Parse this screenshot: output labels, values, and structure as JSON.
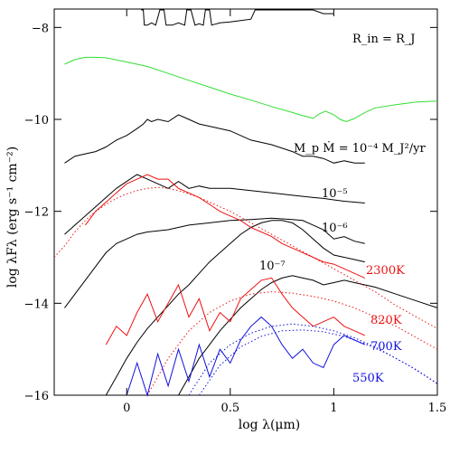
{
  "chart_data": {
    "type": "line",
    "xlabel": "log λ(μm)",
    "ylabel": "log λFλ  (erg s⁻¹ cm⁻²)",
    "xlim": [
      -0.35,
      1.5
    ],
    "ylim": [
      -16,
      -7.6
    ],
    "x_ticks": [
      0,
      0.5,
      1,
      1.5
    ],
    "x_tick_labels": [
      "0",
      "0.5",
      "1",
      "1.5"
    ],
    "y_ticks": [
      -8,
      -10,
      -12,
      -14,
      -16
    ],
    "y_tick_labels": [
      "−8",
      "−10",
      "−12",
      "−14",
      "−16"
    ],
    "grid": false,
    "colors": {
      "axes": "#000000",
      "disk_top": "#000000",
      "green": "#33dd33",
      "red": "#ee1111",
      "blue": "#1111dd",
      "black_model": "#000000"
    },
    "annotations": {
      "rin": "R_in = R_J",
      "accretion": "M_p Ṁ = 10⁻⁴ M_J²/yr",
      "acc5": "10⁻⁵",
      "acc6": "10⁻⁶",
      "acc7": "10⁻⁷",
      "t2300": "2300K",
      "t820": "820K",
      "t700": "700K",
      "t550": "550K"
    },
    "series": [
      {
        "color": "#000000",
        "style": "solid",
        "x": [
          0.07,
          0.08,
          0.085,
          0.09,
          0.1,
          0.12,
          0.14,
          0.16,
          0.17,
          0.18,
          0.19,
          0.2,
          0.22,
          0.25,
          0.28,
          0.29,
          0.3,
          0.31,
          0.33,
          0.35,
          0.37,
          0.38,
          0.39,
          0.4,
          0.41,
          0.45,
          0.5,
          0.55,
          0.6,
          0.62,
          0.63,
          0.64,
          0.65,
          0.66,
          0.68,
          0.7,
          0.75,
          0.8,
          0.85,
          0.9,
          0.95,
          1.0
        ],
        "y": [
          -7.62,
          -7.62,
          -7.95,
          -7.95,
          -7.95,
          -7.9,
          -7.95,
          -7.62,
          -7.62,
          -7.62,
          -7.95,
          -7.95,
          -7.95,
          -7.9,
          -7.95,
          -7.62,
          -7.62,
          -7.62,
          -7.95,
          -7.92,
          -7.95,
          -7.62,
          -7.62,
          -7.62,
          -7.95,
          -7.9,
          -7.88,
          -7.85,
          -7.82,
          -7.62,
          -7.62,
          -7.62,
          -7.62,
          -7.62,
          -7.62,
          -7.62,
          -7.62,
          -7.62,
          -7.62,
          -7.62,
          -7.7,
          -7.7
        ]
      },
      {
        "color": "#33dd33",
        "style": "solid",
        "x": [
          -0.3,
          -0.25,
          -0.2,
          -0.15,
          -0.1,
          0.0,
          0.1,
          0.2,
          0.3,
          0.4,
          0.5,
          0.6,
          0.7,
          0.8,
          0.85,
          0.88,
          0.9,
          0.93,
          0.96,
          1.0,
          1.03,
          1.06,
          1.1,
          1.15,
          1.2,
          1.3,
          1.4,
          1.5
        ],
        "y": [
          -8.8,
          -8.7,
          -8.65,
          -8.65,
          -8.66,
          -8.75,
          -8.85,
          -9.0,
          -9.15,
          -9.3,
          -9.45,
          -9.58,
          -9.72,
          -9.85,
          -9.92,
          -9.95,
          -9.98,
          -9.88,
          -9.82,
          -9.9,
          -10.0,
          -10.05,
          -9.98,
          -9.85,
          -9.75,
          -9.68,
          -9.62,
          -9.6
        ]
      },
      {
        "color": "#000000",
        "style": "solid",
        "x": [
          -0.3,
          -0.25,
          -0.2,
          -0.15,
          -0.1,
          -0.05,
          0.0,
          0.05,
          0.08,
          0.1,
          0.12,
          0.15,
          0.2,
          0.25,
          0.3,
          0.35,
          0.4,
          0.5,
          0.6,
          0.7,
          0.8,
          0.85,
          0.9,
          0.95,
          1.0,
          1.05,
          1.1,
          1.15
        ],
        "y": [
          -10.95,
          -10.8,
          -10.75,
          -10.7,
          -10.6,
          -10.45,
          -10.35,
          -10.2,
          -10.1,
          -10.0,
          -10.05,
          -10.0,
          -10.05,
          -9.9,
          -10.0,
          -10.1,
          -10.15,
          -10.25,
          -10.45,
          -10.55,
          -10.7,
          -10.8,
          -10.8,
          -10.85,
          -10.95,
          -10.9,
          -10.95,
          -10.95
        ]
      },
      {
        "color": "#000000",
        "style": "solid",
        "x": [
          -0.3,
          -0.25,
          -0.2,
          -0.15,
          -0.1,
          -0.05,
          0.0,
          0.05,
          0.1,
          0.15,
          0.2,
          0.25,
          0.3,
          0.35,
          0.4,
          0.5,
          0.6,
          0.7,
          0.8,
          0.9,
          0.95,
          1.0,
          1.05,
          1.1,
          1.15
        ],
        "y": [
          -12.5,
          -12.3,
          -12.1,
          -11.9,
          -11.7,
          -11.5,
          -11.35,
          -11.2,
          -11.3,
          -11.4,
          -11.5,
          -11.35,
          -11.5,
          -11.45,
          -11.5,
          -11.5,
          -11.55,
          -11.6,
          -11.65,
          -11.7,
          -11.72,
          -11.75,
          -11.78,
          -11.8,
          -11.82
        ]
      },
      {
        "color": "#000000",
        "style": "solid",
        "x": [
          -0.3,
          -0.25,
          -0.2,
          -0.15,
          -0.1,
          -0.05,
          0.0,
          0.05,
          0.1,
          0.2,
          0.3,
          0.4,
          0.5,
          0.6,
          0.7,
          0.8,
          0.85,
          0.9,
          0.95,
          1.0,
          1.05,
          1.1,
          1.15
        ],
        "y": [
          -14.1,
          -13.8,
          -13.5,
          -13.2,
          -12.9,
          -12.7,
          -12.6,
          -12.5,
          -12.45,
          -12.4,
          -12.3,
          -12.25,
          -12.2,
          -12.18,
          -12.15,
          -12.18,
          -12.2,
          -12.3,
          -12.4,
          -12.6,
          -12.55,
          -12.65,
          -12.7
        ]
      },
      {
        "color": "#000000",
        "style": "solid",
        "x": [
          -0.1,
          -0.05,
          0.0,
          0.05,
          0.1,
          0.15,
          0.2,
          0.25,
          0.3,
          0.35,
          0.4,
          0.45,
          0.5,
          0.55,
          0.6,
          0.65,
          0.7,
          0.75,
          0.8,
          0.85,
          0.9,
          0.95,
          1.0,
          1.05,
          1.1,
          1.15
        ],
        "y": [
          -16.0,
          -15.6,
          -15.2,
          -14.85,
          -14.55,
          -14.3,
          -14.05,
          -13.8,
          -13.6,
          -13.35,
          -13.1,
          -12.9,
          -12.7,
          -12.5,
          -12.35,
          -12.25,
          -12.2,
          -12.2,
          -12.25,
          -12.4,
          -12.6,
          -12.8,
          -12.95,
          -13.0,
          -13.05,
          -13.1
        ]
      },
      {
        "color": "#000000",
        "style": "solid",
        "x": [
          0.25,
          0.3,
          0.35,
          0.4,
          0.45,
          0.5,
          0.55,
          0.6,
          0.65,
          0.7,
          0.75,
          0.8,
          0.85,
          0.9,
          0.95,
          1.0,
          1.05,
          1.1,
          1.2,
          1.3,
          1.4,
          1.5
        ],
        "y": [
          -16.0,
          -15.6,
          -15.2,
          -14.9,
          -14.6,
          -14.35,
          -14.1,
          -13.9,
          -13.7,
          -13.55,
          -13.45,
          -13.4,
          -13.45,
          -13.5,
          -13.6,
          -13.55,
          -13.5,
          -13.55,
          -13.65,
          -13.8,
          -13.95,
          -14.1
        ]
      },
      {
        "color": "#ee1111",
        "style": "solid",
        "x": [
          -0.2,
          -0.15,
          -0.1,
          -0.05,
          0.0,
          0.05,
          0.1,
          0.15,
          0.2,
          0.25,
          0.3,
          0.35,
          0.4,
          0.45,
          0.5,
          0.55,
          0.6,
          0.65,
          0.7,
          0.75,
          0.8,
          0.85,
          0.9,
          0.95,
          1.0,
          1.05,
          1.1,
          1.15
        ],
        "y": [
          -12.3,
          -12.0,
          -11.8,
          -11.6,
          -11.4,
          -11.3,
          -11.2,
          -11.3,
          -11.3,
          -11.5,
          -11.6,
          -11.7,
          -11.85,
          -12.0,
          -12.1,
          -12.2,
          -12.35,
          -12.45,
          -12.55,
          -12.7,
          -12.8,
          -12.9,
          -13.0,
          -13.1,
          -13.15,
          -13.25,
          -13.35,
          -13.45
        ]
      },
      {
        "color": "#ee1111",
        "style": "dotted",
        "x": [
          -0.35,
          -0.3,
          -0.25,
          -0.2,
          -0.15,
          -0.1,
          -0.05,
          0.0,
          0.05,
          0.1,
          0.15,
          0.2,
          0.25,
          0.3,
          0.35,
          0.4,
          0.5,
          0.6,
          0.7,
          0.8,
          0.9,
          1.0,
          1.1,
          1.2,
          1.3,
          1.4,
          1.5
        ],
        "y": [
          -13.0,
          -12.75,
          -12.45,
          -12.2,
          -12.0,
          -11.85,
          -11.72,
          -11.62,
          -11.55,
          -11.5,
          -11.48,
          -11.5,
          -11.55,
          -11.62,
          -11.7,
          -11.8,
          -12.0,
          -12.25,
          -12.5,
          -12.75,
          -13.0,
          -13.25,
          -13.5,
          -13.75,
          -14.05,
          -14.3,
          -14.55
        ]
      },
      {
        "color": "#ee1111",
        "style": "solid",
        "x": [
          -0.1,
          -0.05,
          0.0,
          0.05,
          0.1,
          0.15,
          0.2,
          0.25,
          0.3,
          0.35,
          0.4,
          0.45,
          0.5,
          0.55,
          0.6,
          0.65,
          0.7,
          0.75,
          0.8,
          0.85,
          0.9,
          0.95,
          1.0,
          1.05,
          1.1,
          1.15
        ],
        "y": [
          -14.9,
          -14.5,
          -14.7,
          -14.2,
          -13.8,
          -14.4,
          -14.0,
          -13.6,
          -14.3,
          -13.9,
          -14.6,
          -14.2,
          -14.4,
          -13.9,
          -13.7,
          -13.5,
          -13.45,
          -13.8,
          -14.1,
          -14.3,
          -14.5,
          -14.4,
          -14.3,
          -14.5,
          -14.6,
          -14.7
        ]
      },
      {
        "color": "#ee1111",
        "style": "dotted",
        "x": [
          0.1,
          0.2,
          0.3,
          0.4,
          0.5,
          0.6,
          0.7,
          0.8,
          0.9,
          1.0,
          1.1,
          1.2,
          1.3,
          1.4,
          1.5
        ],
        "y": [
          -16.0,
          -15.2,
          -14.6,
          -14.2,
          -13.95,
          -13.8,
          -13.75,
          -13.78,
          -13.85,
          -13.95,
          -14.1,
          -14.3,
          -14.5,
          -14.75,
          -15.0
        ]
      },
      {
        "color": "#1111dd",
        "style": "solid",
        "x": [
          0.0,
          0.05,
          0.1,
          0.15,
          0.2,
          0.25,
          0.3,
          0.35,
          0.4,
          0.45,
          0.5,
          0.55,
          0.6,
          0.65,
          0.7,
          0.75,
          0.8,
          0.85,
          0.9,
          0.95,
          1.0,
          1.05,
          1.1,
          1.15
        ],
        "y": [
          -16.0,
          -15.3,
          -16.0,
          -15.1,
          -15.8,
          -15.0,
          -15.7,
          -14.9,
          -15.6,
          -15.0,
          -15.3,
          -14.8,
          -14.5,
          -14.3,
          -14.5,
          -14.9,
          -15.2,
          -15.0,
          -15.3,
          -15.4,
          -14.9,
          -14.7,
          -14.8,
          -14.9
        ]
      },
      {
        "color": "#1111dd",
        "style": "dotted",
        "x": [
          0.3,
          0.4,
          0.5,
          0.6,
          0.7,
          0.8,
          0.9,
          1.0,
          1.1,
          1.2,
          1.3,
          1.4,
          1.5
        ],
        "y": [
          -16.0,
          -15.3,
          -14.9,
          -14.65,
          -14.5,
          -14.45,
          -14.5,
          -14.6,
          -14.75,
          -14.95,
          -15.2,
          -15.45,
          -15.75
        ]
      },
      {
        "color": "#1111dd",
        "style": "dotted",
        "x": [
          0.35,
          0.45,
          0.55,
          0.65,
          0.75,
          0.85,
          0.95,
          1.05,
          1.15,
          1.25,
          1.35,
          1.45,
          1.5
        ],
        "y": [
          -16.0,
          -15.35,
          -14.95,
          -14.72,
          -14.6,
          -14.58,
          -14.62,
          -14.72,
          -14.88,
          -15.08,
          -15.32,
          -15.6,
          -15.75
        ]
      }
    ]
  }
}
